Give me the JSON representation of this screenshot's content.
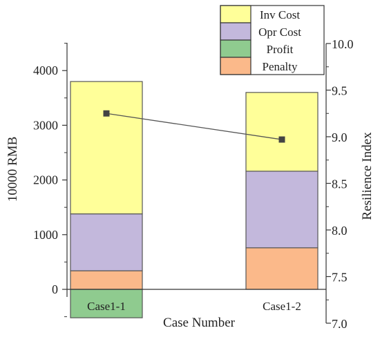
{
  "chart_data": {
    "type": "bar",
    "subtype": "stacked bar with line on secondary axis",
    "categories": [
      "Case1-1",
      "Case1-2"
    ],
    "xlabel": "Case Number",
    "ylabel": "10000 RMB",
    "ylabel_right": "Resilience Index",
    "ylim": [
      -500,
      4500
    ],
    "yticks": [
      0,
      1000,
      2000,
      3000,
      4000
    ],
    "ylim_right": [
      7.0,
      10.0
    ],
    "yticks_right": [
      "7.0",
      "7.5",
      "8.0",
      "8.5",
      "9.0",
      "9.5",
      "10.0"
    ],
    "grid": false,
    "legend_position": "top-right",
    "series": [
      {
        "name": "Inv Cost",
        "color": "#ffff99",
        "values": [
          2420,
          1440
        ]
      },
      {
        "name": "Opr Cost",
        "color": "#c3b8dc",
        "values": [
          1040,
          1400
        ]
      },
      {
        "name": "Profit",
        "color": "#8fcb8f",
        "values": [
          -520,
          0
        ]
      },
      {
        "name": "Penalty",
        "color": "#fbb98a",
        "values": [
          340,
          760
        ]
      }
    ],
    "line": {
      "axis": "right",
      "color": "#555555",
      "values": [
        9.25,
        8.97
      ]
    }
  }
}
